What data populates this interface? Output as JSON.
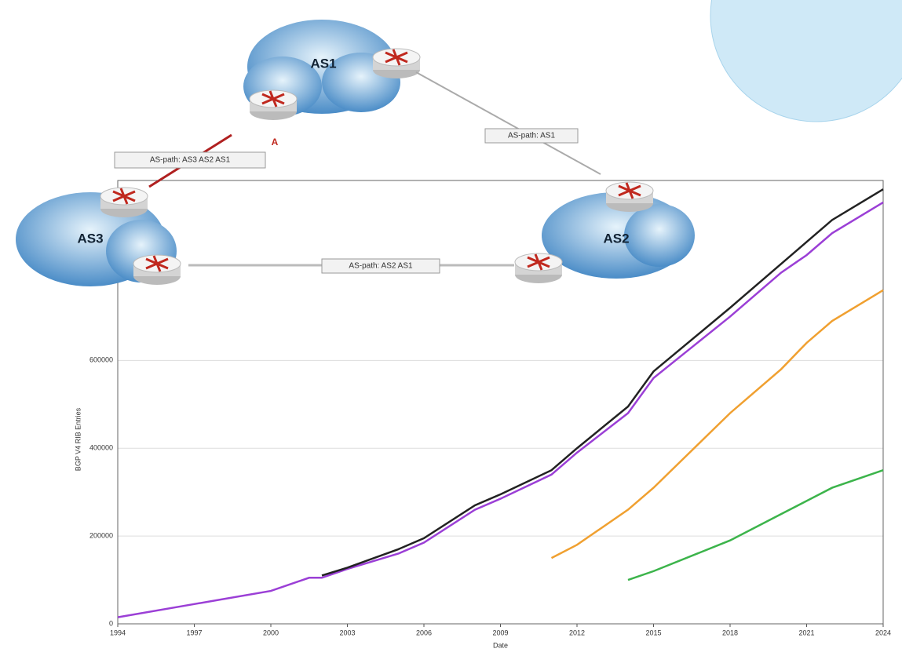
{
  "chart_data": {
    "type": "line",
    "x_label": "Date",
    "y_label": "BGP V4 RIB Entries",
    "x": [
      1994,
      1997,
      2000,
      2001.5,
      2002,
      2003,
      2005,
      2006,
      2008,
      2009,
      2011,
      2012,
      2014,
      2015,
      2018,
      2020,
      2021,
      2022,
      2024
    ],
    "series": [
      {
        "color": "#9b3fd6",
        "values": [
          15000,
          45000,
          75000,
          105000,
          105000,
          125000,
          160000,
          185000,
          260000,
          285000,
          340000,
          390000,
          480000,
          560000,
          700000,
          800000,
          840000,
          890000,
          960000
        ]
      },
      {
        "color": "#222222",
        "values": [
          null,
          null,
          null,
          null,
          110000,
          128000,
          170000,
          195000,
          270000,
          295000,
          350000,
          400000,
          495000,
          575000,
          720000,
          820000,
          870000,
          920000,
          990000
        ]
      },
      {
        "color": "#f0a030",
        "values": [
          null,
          null,
          null,
          null,
          null,
          null,
          null,
          null,
          null,
          null,
          150000,
          180000,
          260000,
          310000,
          480000,
          580000,
          640000,
          690000,
          760000
        ]
      },
      {
        "color": "#3cb44b",
        "values": [
          null,
          null,
          null,
          null,
          null,
          null,
          null,
          null,
          null,
          null,
          null,
          null,
          100000,
          120000,
          190000,
          250000,
          280000,
          310000,
          350000
        ]
      }
    ],
    "xlim": [
      1994,
      2024
    ],
    "xticks": [
      1994,
      1997,
      2000,
      2003,
      2006,
      2009,
      2012,
      2015,
      2018,
      2021,
      2024
    ],
    "ylim": [
      0,
      1010000
    ],
    "yticks": [
      0,
      200000,
      400000,
      600000
    ],
    "grid": true
  },
  "diagram": {
    "nodes": [
      {
        "label": "AS1"
      },
      {
        "label": "AS2"
      },
      {
        "label": "AS3"
      }
    ],
    "edges": [
      {
        "label": "AS-path: AS1"
      },
      {
        "label": "AS-path: AS2 AS1"
      },
      {
        "label": "AS-path: AS3 AS2 AS1"
      }
    ],
    "marker": "A"
  }
}
